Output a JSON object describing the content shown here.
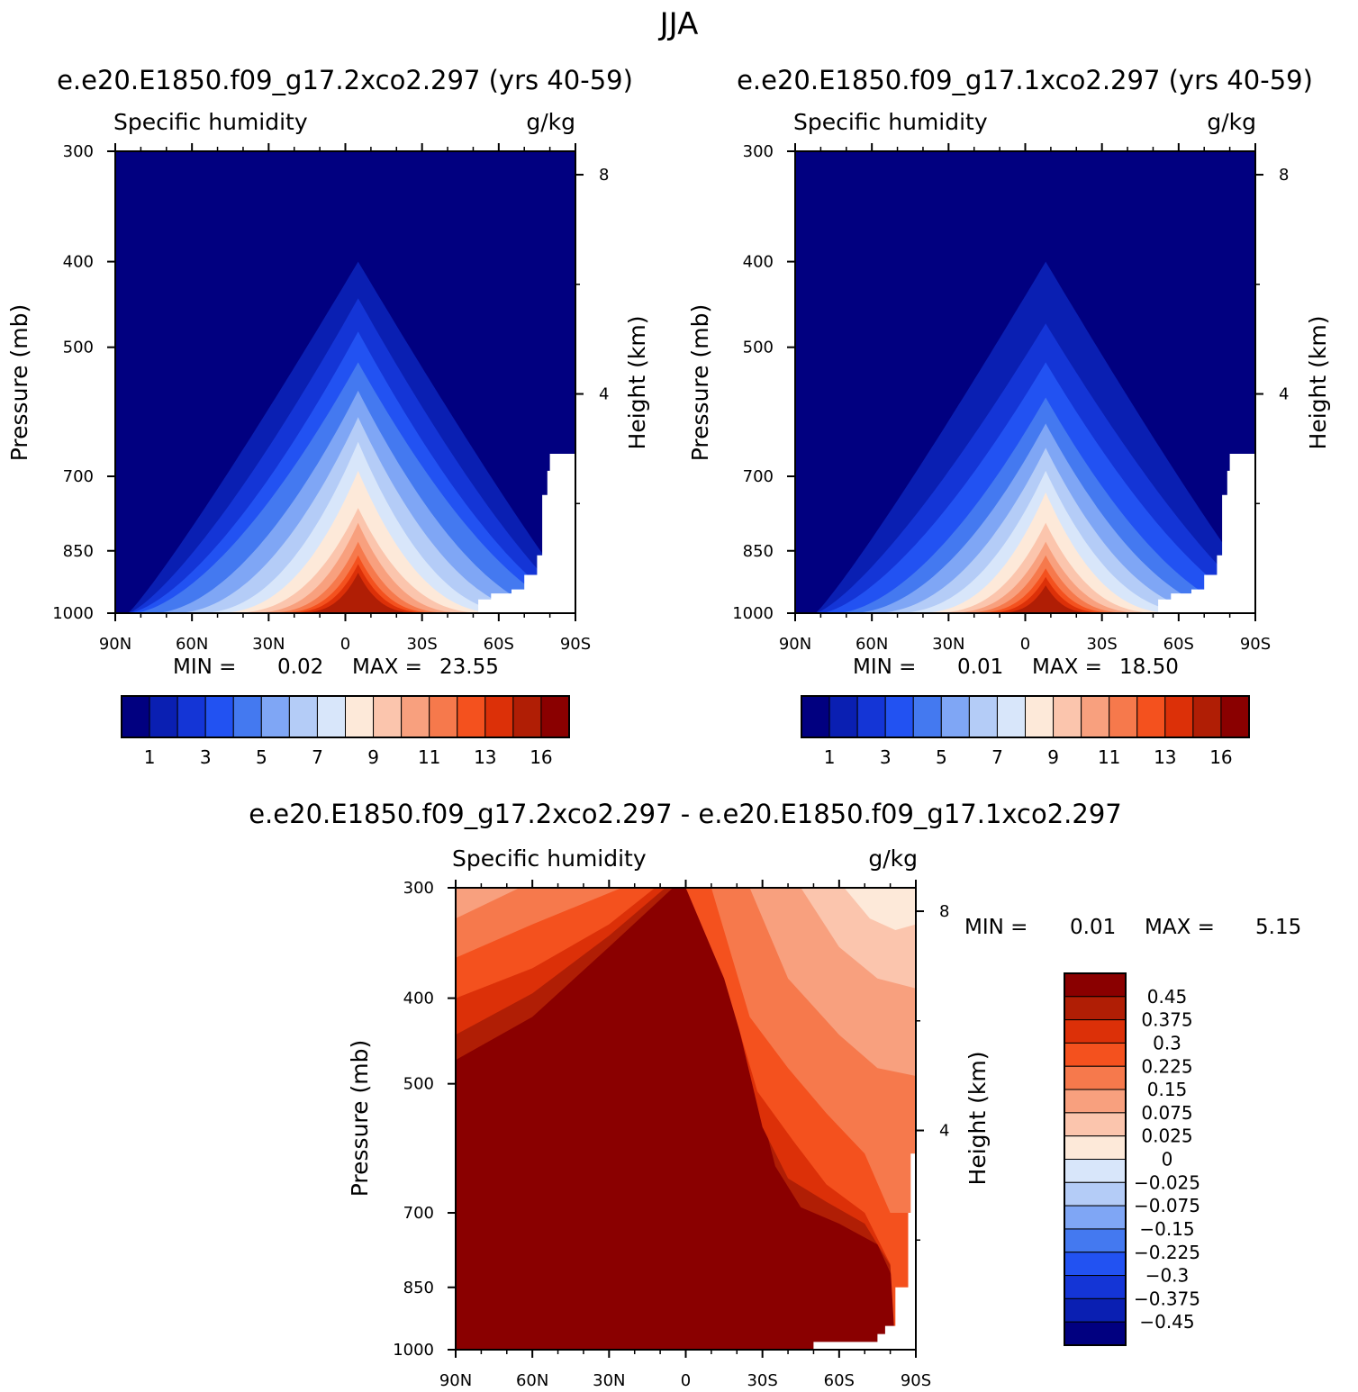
{
  "page_title": "JJA",
  "chart_data": [
    {
      "type": "contour",
      "title": "e.e20.E1850.f09_g17.2xco2.297 (yrs 40-59)",
      "subtitle_left": "Specific humidity",
      "subtitle_right": "g/kg",
      "ylabel": "Pressure (mb)",
      "ylabel_right": "Height (km)",
      "x_ticks": [
        "90N",
        "60N",
        "30N",
        "0",
        "30S",
        "60S",
        "90S"
      ],
      "y_ticks": [
        "300",
        "400",
        "500",
        "700",
        "850",
        "1000"
      ],
      "y_ticks_right": [
        "8",
        "4"
      ],
      "xlim": [
        90,
        -90
      ],
      "ylim": [
        1000,
        300
      ],
      "min_label": "MIN =",
      "min_value": "0.02",
      "max_label": "MAX =",
      "max_value": "23.55",
      "colorbar_labels": [
        "1",
        "3",
        "5",
        "7",
        "9",
        "11",
        "13",
        "16"
      ],
      "colorbar_colors": [
        "#010080",
        "#0a1fb2",
        "#1435d6",
        "#2252f2",
        "#4479f0",
        "#7fa6f5",
        "#b4ccf7",
        "#d8e6fa",
        "#fde9d9",
        "#fbc5ad",
        "#f8a07e",
        "#f6794c",
        "#f4511e",
        "#dc3008",
        "#b01e05",
        "#8a0000"
      ],
      "contour_peak_pressure": [
        300,
        400,
        440,
        480,
        520,
        560,
        600,
        640,
        690,
        760,
        790,
        830,
        860,
        880,
        900
      ],
      "contour_base_halfwidth_deg": [
        0,
        90,
        90,
        90,
        88,
        80,
        72,
        63,
        57,
        52,
        45,
        40,
        36,
        33,
        29
      ],
      "contour_center_lat": -5,
      "contour_sharpness": [
        1,
        1.1,
        1.3,
        1.5,
        1.6,
        1.8,
        2.0,
        2.2,
        2.4,
        2.6,
        2.8,
        3.0,
        3.2,
        3.4,
        3.6
      ]
    },
    {
      "type": "contour",
      "title": "e.e20.E1850.f09_g17.1xco2.297 (yrs 40-59)",
      "subtitle_left": "Specific humidity",
      "subtitle_right": "g/kg",
      "ylabel": "Pressure (mb)",
      "ylabel_right": "Height (km)",
      "x_ticks": [
        "90N",
        "60N",
        "30N",
        "0",
        "30S",
        "60S",
        "90S"
      ],
      "y_ticks": [
        "300",
        "400",
        "500",
        "700",
        "850",
        "1000"
      ],
      "y_ticks_right": [
        "8",
        "4"
      ],
      "xlim": [
        90,
        -90
      ],
      "ylim": [
        1000,
        300
      ],
      "min_label": "MIN =",
      "min_value": "0.01",
      "max_label": "MAX =",
      "max_value": "18.50",
      "colorbar_labels": [
        "1",
        "3",
        "5",
        "7",
        "9",
        "11",
        "13",
        "16"
      ],
      "colorbar_colors": [
        "#010080",
        "#0a1fb2",
        "#1435d6",
        "#2252f2",
        "#4479f0",
        "#7fa6f5",
        "#b4ccf7",
        "#d8e6fa",
        "#fde9d9",
        "#fbc5ad",
        "#f8a07e",
        "#f6794c",
        "#f4511e",
        "#dc3008",
        "#b01e05",
        "#8a0000"
      ],
      "contour_peak_pressure": [
        300,
        400,
        470,
        520,
        570,
        610,
        650,
        690,
        730,
        790,
        830,
        860,
        890,
        910,
        930
      ],
      "contour_base_halfwidth_deg": [
        0,
        90,
        90,
        88,
        82,
        76,
        68,
        60,
        52,
        47,
        42,
        37,
        33,
        29,
        24
      ],
      "contour_center_lat": -8,
      "contour_sharpness": [
        1,
        1.1,
        1.3,
        1.5,
        1.7,
        1.9,
        2.1,
        2.3,
        2.5,
        2.7,
        2.9,
        3.1,
        3.3,
        3.5,
        3.7
      ]
    },
    {
      "type": "contour",
      "title": "e.e20.E1850.f09_g17.2xco2.297 - e.e20.E1850.f09_g17.1xco2.297",
      "subtitle_left": "Specific humidity",
      "subtitle_right": "g/kg",
      "ylabel": "Pressure (mb)",
      "ylabel_right": "Height (km)",
      "x_ticks": [
        "90N",
        "60N",
        "30N",
        "0",
        "30S",
        "60S",
        "90S"
      ],
      "y_ticks": [
        "300",
        "400",
        "500",
        "700",
        "850",
        "1000"
      ],
      "y_ticks_right": [
        "8",
        "4"
      ],
      "xlim": [
        90,
        -90
      ],
      "ylim": [
        1000,
        300
      ],
      "min_label": "MIN =",
      "min_value": "0.01",
      "max_label": "MAX =",
      "max_value": "5.15",
      "colorbar_labels": [
        "0.45",
        "0.375",
        "0.3",
        "0.225",
        "0.15",
        "0.075",
        "0.025",
        "0",
        "-0.025",
        "-0.075",
        "-0.15",
        "-0.225",
        "-0.3",
        "-0.375",
        "-0.45"
      ],
      "colorbar_colors": [
        "#8a0000",
        "#b01e05",
        "#dc3008",
        "#f4511e",
        "#f6794c",
        "#f8a07e",
        "#fbc5ad",
        "#fde9d9",
        "#d8e6fa",
        "#b4ccf7",
        "#7fa6f5",
        "#4479f0",
        "#2252f2",
        "#1435d6",
        "#0a1fb2",
        "#010080"
      ]
    }
  ]
}
